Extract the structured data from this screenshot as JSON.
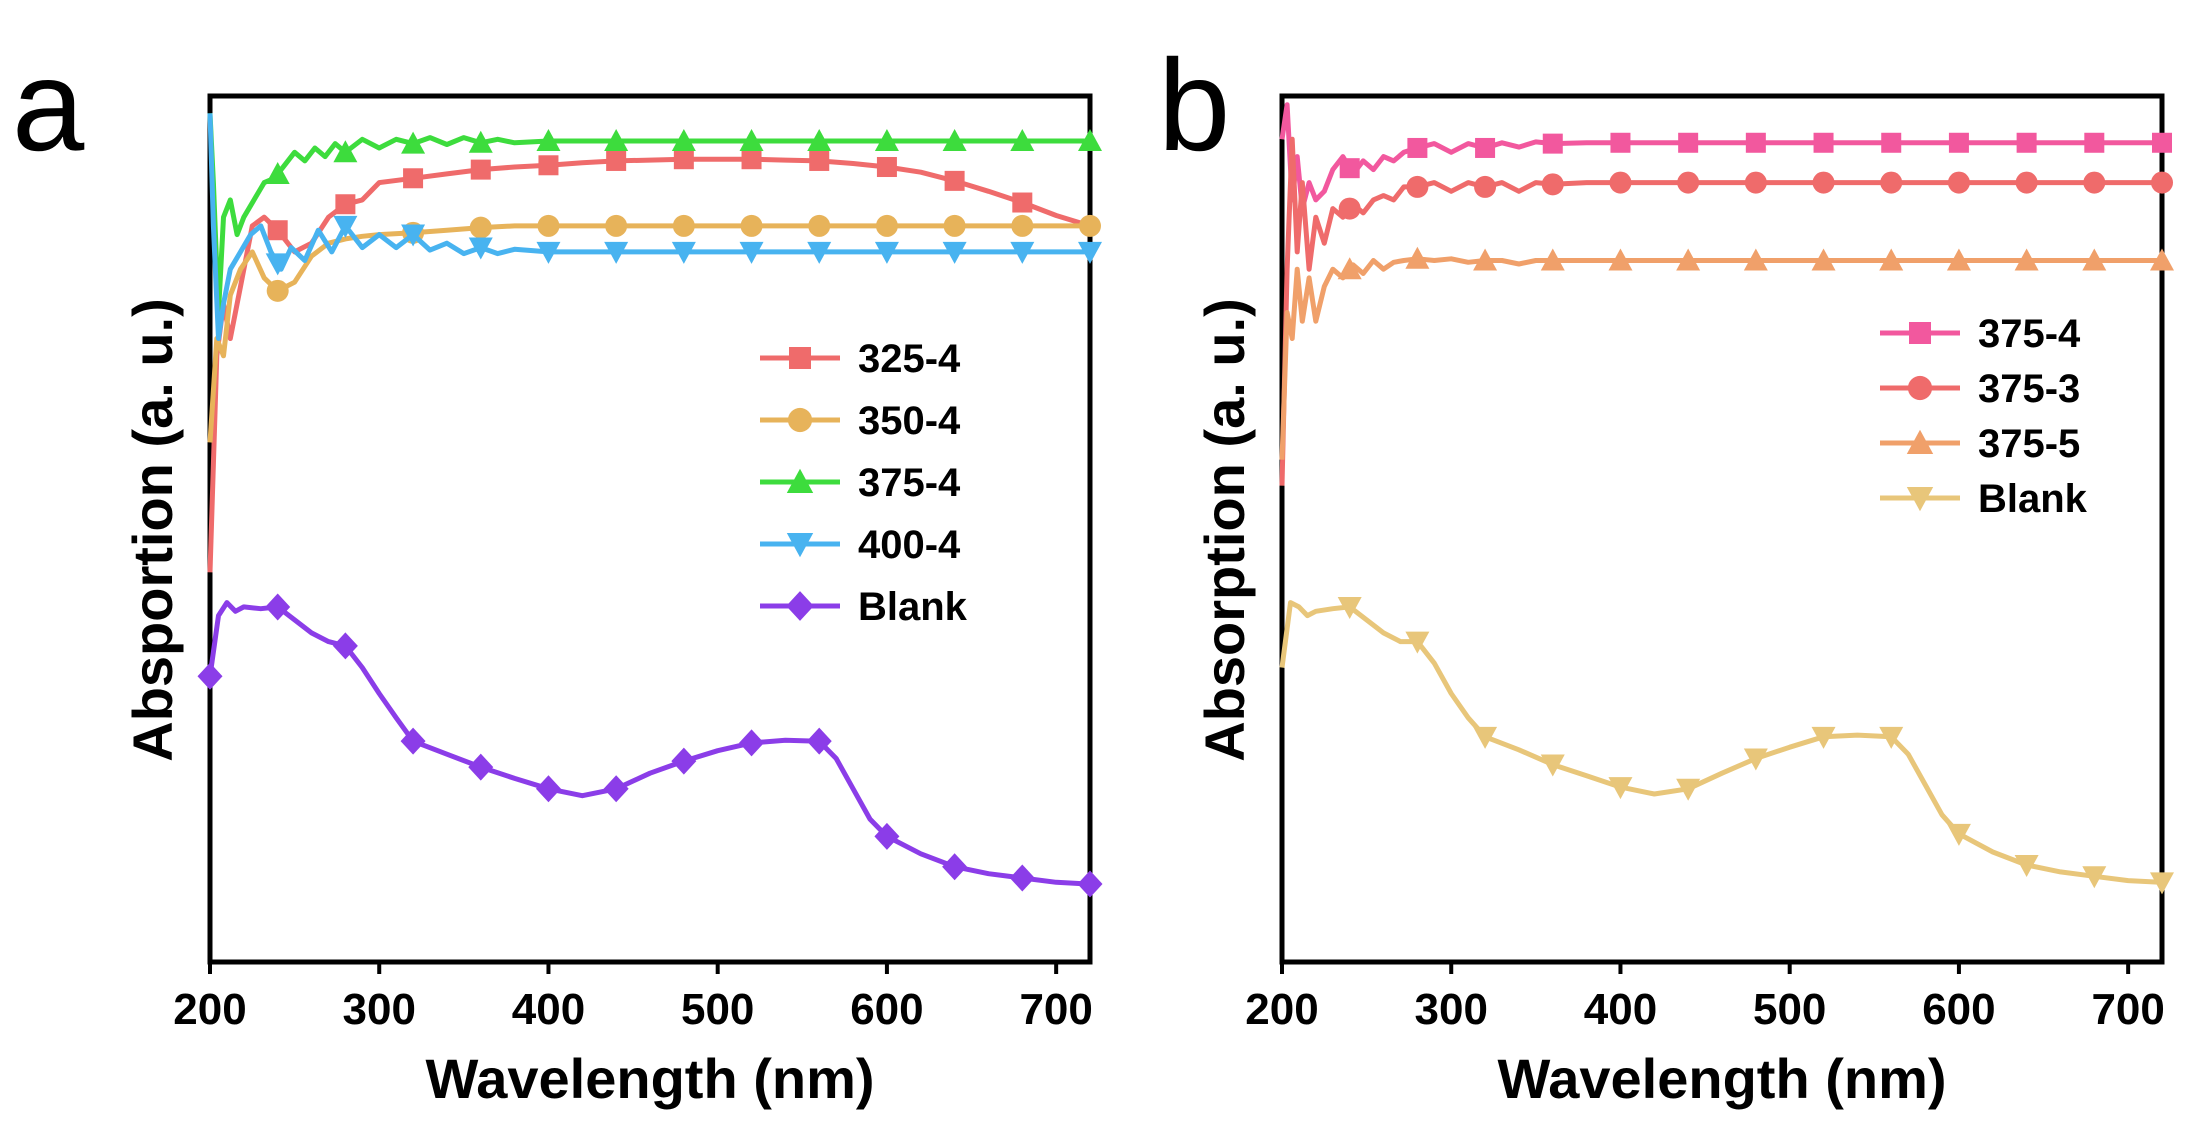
{
  "chart_data": [
    {
      "type": "line",
      "panel_label": "a",
      "xlabel": "Wavelength (nm)",
      "ylabel": "Absportion (a. u.)",
      "xlim": [
        200,
        720
      ],
      "ylim": [
        0,
        1
      ],
      "xticks": [
        200,
        300,
        400,
        500,
        600,
        700
      ],
      "legend_position": "middle-right",
      "series": [
        {
          "name": "325-4",
          "color": "#ef6b6b",
          "marker": "square",
          "x": [
            200,
            204,
            208,
            212,
            218,
            225,
            232,
            240,
            250,
            260,
            270,
            280,
            290,
            300,
            320,
            340,
            360,
            380,
            400,
            420,
            440,
            460,
            480,
            500,
            520,
            540,
            560,
            580,
            600,
            620,
            640,
            660,
            680,
            700,
            720
          ],
          "y": [
            0.45,
            0.7,
            0.76,
            0.72,
            0.78,
            0.85,
            0.86,
            0.845,
            0.82,
            0.83,
            0.86,
            0.875,
            0.88,
            0.9,
            0.905,
            0.91,
            0.915,
            0.918,
            0.92,
            0.923,
            0.925,
            0.926,
            0.927,
            0.927,
            0.927,
            0.926,
            0.925,
            0.922,
            0.918,
            0.912,
            0.902,
            0.89,
            0.877,
            0.862,
            0.85
          ],
          "marker_x": [
            240,
            280,
            320,
            360,
            400,
            440,
            480,
            520,
            560,
            600,
            640,
            680
          ]
        },
        {
          "name": "350-4",
          "color": "#e7b35a",
          "marker": "circle",
          "x": [
            200,
            204,
            208,
            212,
            218,
            225,
            232,
            240,
            250,
            260,
            270,
            280,
            290,
            300,
            320,
            340,
            360,
            380,
            400,
            440,
            480,
            520,
            560,
            600,
            640,
            680,
            720
          ],
          "y": [
            0.6,
            0.72,
            0.7,
            0.77,
            0.8,
            0.82,
            0.79,
            0.775,
            0.785,
            0.815,
            0.83,
            0.835,
            0.838,
            0.84,
            0.842,
            0.845,
            0.848,
            0.85,
            0.85,
            0.85,
            0.85,
            0.85,
            0.85,
            0.85,
            0.85,
            0.85,
            0.85
          ],
          "marker_x": [
            240,
            320,
            360,
            400,
            440,
            480,
            520,
            560,
            600,
            640,
            680,
            720
          ]
        },
        {
          "name": "375-4",
          "color": "#3ddc3d",
          "marker": "triangle-up",
          "x": [
            200,
            202,
            205,
            208,
            212,
            216,
            220,
            226,
            232,
            238,
            244,
            250,
            256,
            262,
            268,
            274,
            280,
            290,
            300,
            310,
            320,
            330,
            340,
            350,
            360,
            370,
            380,
            400,
            440,
            480,
            520,
            560,
            600,
            640,
            680,
            720
          ],
          "y": [
            0.98,
            0.9,
            0.75,
            0.86,
            0.88,
            0.84,
            0.86,
            0.88,
            0.9,
            0.905,
            0.92,
            0.935,
            0.925,
            0.94,
            0.93,
            0.945,
            0.935,
            0.95,
            0.94,
            0.95,
            0.945,
            0.952,
            0.944,
            0.952,
            0.946,
            0.95,
            0.946,
            0.948,
            0.948,
            0.948,
            0.948,
            0.948,
            0.948,
            0.948,
            0.948,
            0.948
          ],
          "marker_x": [
            240,
            280,
            320,
            360,
            400,
            440,
            480,
            520,
            560,
            600,
            640,
            680,
            720
          ]
        },
        {
          "name": "400-4",
          "color": "#48b3f0",
          "marker": "triangle-down",
          "x": [
            200,
            202,
            205,
            208,
            212,
            218,
            224,
            230,
            236,
            242,
            248,
            256,
            264,
            272,
            280,
            290,
            300,
            310,
            320,
            330,
            340,
            350,
            360,
            370,
            380,
            400,
            440,
            480,
            520,
            560,
            600,
            640,
            680,
            720
          ],
          "y": [
            0.98,
            0.85,
            0.72,
            0.76,
            0.8,
            0.82,
            0.84,
            0.85,
            0.82,
            0.8,
            0.825,
            0.81,
            0.845,
            0.82,
            0.85,
            0.825,
            0.84,
            0.825,
            0.84,
            0.822,
            0.83,
            0.818,
            0.825,
            0.818,
            0.823,
            0.82,
            0.82,
            0.82,
            0.82,
            0.82,
            0.82,
            0.82,
            0.82,
            0.82
          ],
          "marker_x": [
            240,
            280,
            320,
            360,
            400,
            440,
            480,
            520,
            560,
            600,
            640,
            680,
            720
          ]
        },
        {
          "name": "Blank",
          "color": "#8b3de8",
          "marker": "diamond",
          "x": [
            200,
            205,
            210,
            215,
            220,
            230,
            240,
            250,
            260,
            270,
            280,
            290,
            300,
            310,
            320,
            340,
            360,
            380,
            400,
            420,
            440,
            460,
            480,
            500,
            520,
            540,
            560,
            570,
            580,
            590,
            600,
            620,
            640,
            660,
            680,
            700,
            720
          ],
          "y": [
            0.33,
            0.4,
            0.415,
            0.405,
            0.41,
            0.408,
            0.41,
            0.395,
            0.38,
            0.37,
            0.365,
            0.34,
            0.31,
            0.282,
            0.255,
            0.24,
            0.225,
            0.212,
            0.2,
            0.192,
            0.2,
            0.218,
            0.232,
            0.244,
            0.253,
            0.256,
            0.255,
            0.235,
            0.2,
            0.165,
            0.145,
            0.125,
            0.11,
            0.102,
            0.097,
            0.092,
            0.09
          ],
          "marker_x": [
            200,
            240,
            280,
            320,
            360,
            400,
            440,
            480,
            520,
            560,
            600,
            640,
            680,
            720
          ]
        }
      ]
    },
    {
      "type": "line",
      "panel_label": "b",
      "xlabel": "Wavelength (nm)",
      "ylabel": "Absorption (a. u.)",
      "xlim": [
        200,
        720
      ],
      "ylim": [
        0,
        1
      ],
      "xticks": [
        200,
        300,
        400,
        500,
        600,
        700
      ],
      "legend_position": "upper-right",
      "series": [
        {
          "name": "375-4",
          "color": "#f2589e",
          "marker": "square",
          "x": [
            200,
            203,
            206,
            209,
            212,
            216,
            220,
            225,
            230,
            236,
            242,
            248,
            254,
            260,
            266,
            272,
            280,
            290,
            300,
            310,
            320,
            330,
            340,
            350,
            360,
            380,
            400,
            440,
            480,
            520,
            560,
            600,
            640,
            680,
            720
          ],
          "y": [
            0.95,
            0.99,
            0.88,
            0.93,
            0.87,
            0.9,
            0.88,
            0.89,
            0.915,
            0.93,
            0.91,
            0.925,
            0.915,
            0.93,
            0.925,
            0.935,
            0.94,
            0.945,
            0.935,
            0.945,
            0.94,
            0.946,
            0.941,
            0.947,
            0.945,
            0.946,
            0.946,
            0.946,
            0.946,
            0.946,
            0.946,
            0.946,
            0.946,
            0.946,
            0.946
          ],
          "marker_x": [
            240,
            280,
            320,
            360,
            400,
            440,
            480,
            520,
            560,
            600,
            640,
            680,
            720
          ]
        },
        {
          "name": "375-3",
          "color": "#ef6b6b",
          "marker": "circle",
          "x": [
            200,
            203,
            206,
            209,
            212,
            216,
            220,
            225,
            230,
            236,
            242,
            248,
            254,
            260,
            266,
            272,
            280,
            290,
            300,
            310,
            320,
            330,
            340,
            350,
            360,
            380,
            400,
            440,
            480,
            520,
            560,
            600,
            640,
            680,
            720
          ],
          "y": [
            0.55,
            0.8,
            0.95,
            0.82,
            0.9,
            0.8,
            0.86,
            0.83,
            0.87,
            0.86,
            0.875,
            0.865,
            0.88,
            0.885,
            0.88,
            0.895,
            0.895,
            0.9,
            0.89,
            0.9,
            0.895,
            0.9,
            0.89,
            0.9,
            0.898,
            0.9,
            0.9,
            0.9,
            0.9,
            0.9,
            0.9,
            0.9,
            0.9,
            0.9,
            0.9
          ],
          "marker_x": [
            240,
            280,
            320,
            360,
            400,
            440,
            480,
            520,
            560,
            600,
            640,
            680,
            720
          ]
        },
        {
          "name": "375-5",
          "color": "#f0a06a",
          "marker": "triangle-up",
          "x": [
            200,
            203,
            206,
            209,
            212,
            216,
            220,
            225,
            230,
            236,
            242,
            248,
            254,
            260,
            266,
            272,
            280,
            290,
            300,
            310,
            320,
            330,
            340,
            350,
            360,
            380,
            400,
            440,
            480,
            520,
            560,
            600,
            640,
            680,
            720
          ],
          "y": [
            0.58,
            0.75,
            0.72,
            0.8,
            0.74,
            0.79,
            0.74,
            0.78,
            0.8,
            0.79,
            0.805,
            0.795,
            0.81,
            0.8,
            0.808,
            0.81,
            0.812,
            0.81,
            0.812,
            0.808,
            0.81,
            0.81,
            0.806,
            0.81,
            0.81,
            0.81,
            0.81,
            0.81,
            0.81,
            0.81,
            0.81,
            0.81,
            0.81,
            0.81,
            0.81
          ],
          "marker_x": [
            240,
            280,
            320,
            360,
            400,
            440,
            480,
            520,
            560,
            600,
            640,
            680,
            720
          ]
        },
        {
          "name": "Blank",
          "color": "#e8c67a",
          "marker": "triangle-down",
          "x": [
            200,
            205,
            210,
            215,
            220,
            230,
            240,
            250,
            260,
            270,
            280,
            290,
            300,
            310,
            320,
            340,
            360,
            380,
            400,
            420,
            440,
            460,
            480,
            500,
            520,
            540,
            560,
            570,
            580,
            590,
            600,
            620,
            640,
            660,
            680,
            700,
            720
          ],
          "y": [
            0.34,
            0.415,
            0.41,
            0.4,
            0.405,
            0.408,
            0.41,
            0.395,
            0.38,
            0.37,
            0.37,
            0.345,
            0.31,
            0.282,
            0.26,
            0.245,
            0.228,
            0.215,
            0.202,
            0.194,
            0.2,
            0.218,
            0.235,
            0.248,
            0.26,
            0.262,
            0.26,
            0.24,
            0.205,
            0.17,
            0.148,
            0.127,
            0.112,
            0.104,
            0.099,
            0.094,
            0.092
          ],
          "marker_x": [
            240,
            280,
            320,
            360,
            400,
            440,
            480,
            520,
            560,
            600,
            640,
            680,
            720
          ]
        }
      ]
    }
  ]
}
